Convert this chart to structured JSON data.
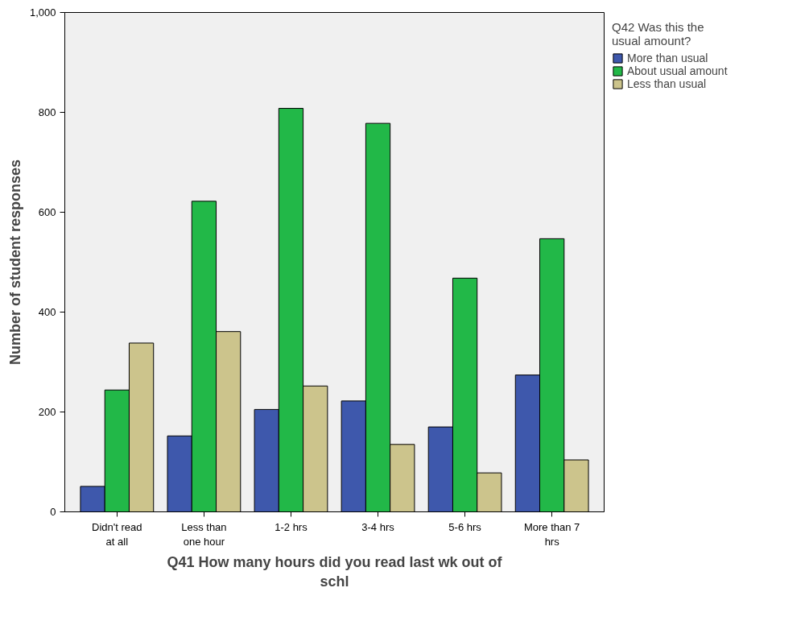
{
  "chart_data": {
    "type": "bar",
    "xlabel": "Q41 How many hours did you read last wk out of schl",
    "ylabel": "Number of student responses",
    "legend_title": "Q42 Was this the usual amount?",
    "categories": [
      "Didn't read at all",
      "Less than one hour",
      "1-2 hrs",
      "3-4 hrs",
      "5-6 hrs",
      "More than 7 hrs"
    ],
    "series": [
      {
        "name": "More than usual",
        "color": "#3e58ac",
        "values": [
          51,
          152,
          205,
          222,
          170,
          274
        ]
      },
      {
        "name": "About usual amount",
        "color": "#22b848",
        "values": [
          244,
          622,
          808,
          778,
          468,
          547
        ]
      },
      {
        "name": "Less than usual",
        "color": "#ccc48c",
        "values": [
          338,
          361,
          252,
          135,
          78,
          104
        ]
      }
    ],
    "ylim": [
      0,
      1000
    ],
    "yticks": [
      0,
      200,
      400,
      600,
      800,
      {
        "value": 1000,
        "label": "1,000"
      }
    ],
    "grid": false,
    "legend": "top right"
  }
}
